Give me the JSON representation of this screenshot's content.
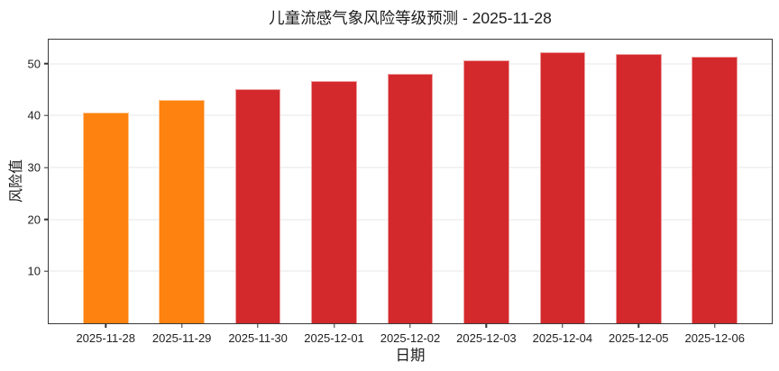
{
  "page": {
    "background": "#ffffff"
  },
  "chart_data": {
    "type": "bar",
    "title": "儿童流感气象风险等级预测 - 2025-11-28",
    "xlabel": "日期",
    "ylabel": "风险值",
    "categories": [
      "2025-11-28",
      "2025-11-29",
      "2025-11-30",
      "2025-12-01",
      "2025-12-02",
      "2025-12-03",
      "2025-12-04",
      "2025-12-05",
      "2025-12-06"
    ],
    "values": [
      40.5,
      43.0,
      45.1,
      46.6,
      48.0,
      50.6,
      52.2,
      51.8,
      51.3
    ],
    "bar_colors": [
      "#fd820f",
      "#fd820f",
      "#d4292c",
      "#d4292c",
      "#d4292c",
      "#d4292c",
      "#d4292c",
      "#d4292c",
      "#d4292c"
    ],
    "yticks": [
      10,
      20,
      30,
      40,
      50
    ],
    "ylim": [
      0,
      54.6
    ],
    "grid": "horizontal",
    "legend": "none",
    "colors": {
      "orange": "#fd820f",
      "red": "#d4292c",
      "spine": "#3a3a3a",
      "grid": "#e7e7e7",
      "text": "#1c1c1c"
    }
  }
}
